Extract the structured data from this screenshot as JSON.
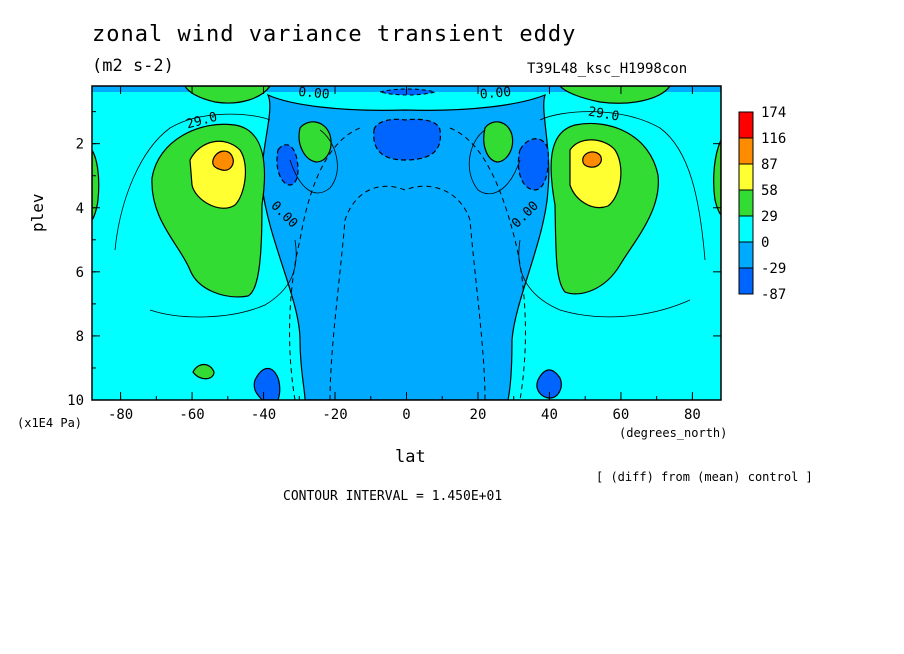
{
  "header": {
    "title": "zonal wind variance transient eddy",
    "units": "(m2 s-2)",
    "run_id": "T39L48_ksc_H1998con"
  },
  "footer": {
    "diff_note": "[ (diff) from (mean) control ]",
    "contour_interval": "CONTOUR INTERVAL = 1.450E+01"
  },
  "chart_data": {
    "type": "contour",
    "title": "zonal wind variance transient eddy",
    "xlabel": "lat",
    "xunit": "(degrees_north)",
    "ylabel": "plev",
    "yunit": "(x1E4 Pa)",
    "xlim": [
      -88,
      88
    ],
    "ylim": [
      10,
      0.2
    ],
    "x_ticks": [
      -80,
      -60,
      -40,
      -20,
      0,
      20,
      40,
      60,
      80
    ],
    "y_ticks": [
      2,
      4,
      6,
      8,
      10
    ],
    "contour_labels": [
      "29.0",
      "29.0",
      "0.00",
      "0.00",
      "0.00",
      "0.00"
    ],
    "colorbar": {
      "labels": [
        "174",
        "116",
        "87",
        "58",
        "29",
        "0",
        "-29",
        "-87"
      ],
      "colors": [
        "#ff0000",
        "#ff8c00",
        "#ffff32",
        "#32dc32",
        "#00ffff",
        "#00aaff",
        "#0064ff",
        "#ffffff"
      ]
    },
    "fills": {
      "background": "#00ffff",
      "negative": "#00aaff",
      "negative_strong": "#0064ff",
      "green": "#32dc32",
      "yellow": "#ffff32",
      "orange": "#ff8c00"
    }
  }
}
